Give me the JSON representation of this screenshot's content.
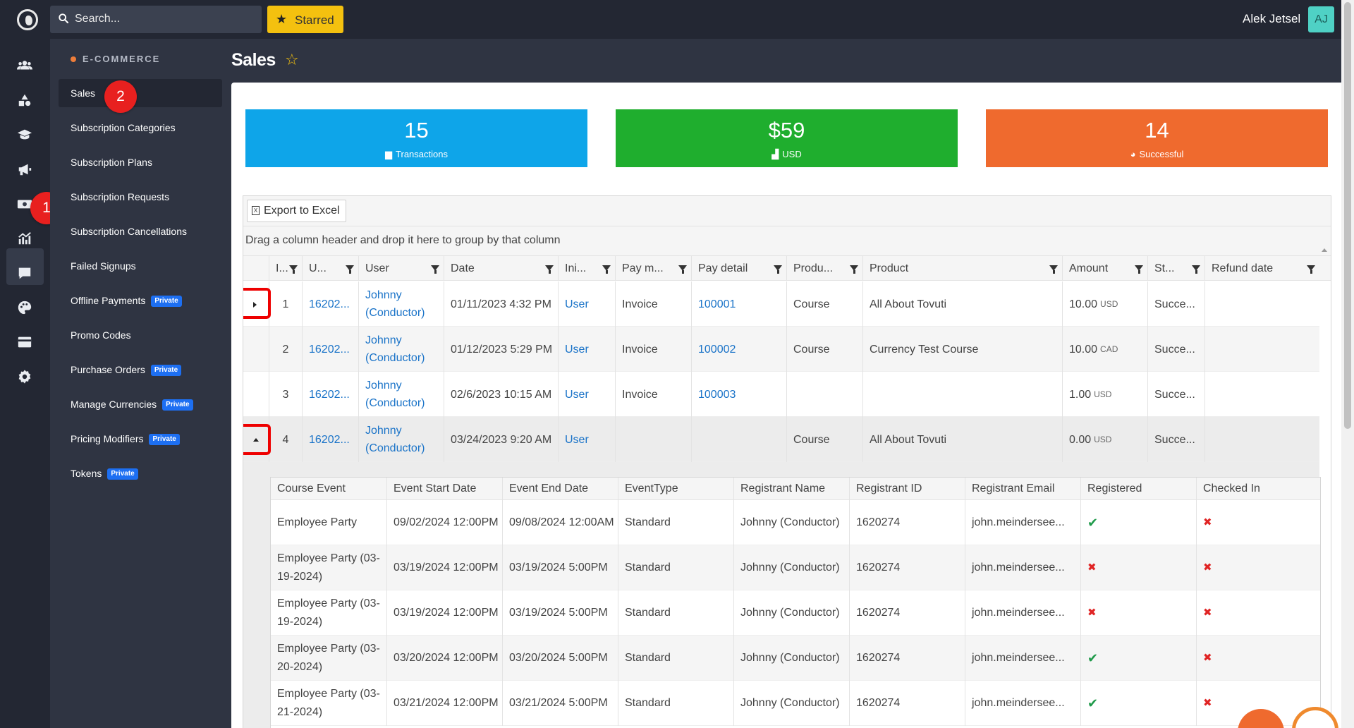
{
  "topbar": {
    "search_placeholder": "Search...",
    "starred_label": "Starred",
    "user_name": "Alek Jetsel",
    "avatar_initials": "AJ"
  },
  "rail": {
    "icons": [
      "users-icon",
      "shapes-icon",
      "graduation-cap-icon",
      "megaphone-icon",
      "money-icon",
      "chart-icon",
      "comment-icon",
      "palette-icon",
      "card-icon",
      "gear-icon"
    ],
    "annotation": "1"
  },
  "subnav": {
    "section_title": "E-COMMERCE",
    "annotation": "2",
    "items": [
      {
        "label": "Sales",
        "private": ""
      },
      {
        "label": "Subscription Categories",
        "private": ""
      },
      {
        "label": "Subscription Plans",
        "private": ""
      },
      {
        "label": "Subscription Requests",
        "private": ""
      },
      {
        "label": "Subscription Cancellations",
        "private": ""
      },
      {
        "label": "Failed Signups",
        "private": ""
      },
      {
        "label": "Offline Payments",
        "private": "Private"
      },
      {
        "label": "Promo Codes",
        "private": ""
      },
      {
        "label": "Purchase Orders",
        "private": "Private"
      },
      {
        "label": "Manage Currencies",
        "private": "Private"
      },
      {
        "label": "Pricing Modifiers",
        "private": "Private"
      },
      {
        "label": "Tokens",
        "private": "Private"
      }
    ]
  },
  "page": {
    "title": "Sales"
  },
  "stats": [
    {
      "value": "15",
      "label": "Transactions",
      "color": "#0ea5e9"
    },
    {
      "value": "$59",
      "label": "USD",
      "color": "#1fae2e"
    },
    {
      "value": "14",
      "label": "Successful",
      "color": "#ef6a2e"
    }
  ],
  "grid": {
    "export_label": "Export to Excel",
    "group_hint": "Drag a column header and drop it here to group by that column",
    "columns": [
      "I...",
      "U...",
      "User",
      "Date",
      "Ini...",
      "Pay m...",
      "Pay detail",
      "Produ...",
      "Product",
      "Amount",
      "St...",
      "Refund date"
    ],
    "rows": [
      {
        "index": "1",
        "uid": "16202...",
        "user": "Johnny (Conductor)",
        "date": "01/11/2023 4:32 PM",
        "initiator": "User",
        "pay_method": "Invoice",
        "pay_detail": "100001",
        "product_type": "Course",
        "product": "All About Tovuti",
        "amount": "10.00",
        "currency": "USD",
        "status": "Succe...",
        "refund_date": ""
      },
      {
        "index": "2",
        "uid": "16202...",
        "user": "Johnny (Conductor)",
        "date": "01/12/2023 5:29 PM",
        "initiator": "User",
        "pay_method": "Invoice",
        "pay_detail": "100002",
        "product_type": "Course",
        "product": "Currency Test Course",
        "amount": "10.00",
        "currency": "CAD",
        "status": "Succe...",
        "refund_date": ""
      },
      {
        "index": "3",
        "uid": "16202...",
        "user": "Johnny (Conductor)",
        "date": "02/6/2023 10:15 AM",
        "initiator": "User",
        "pay_method": "Invoice",
        "pay_detail": "100003",
        "product_type": "",
        "product": "",
        "amount": "1.00",
        "currency": "USD",
        "status": "Succe...",
        "refund_date": ""
      },
      {
        "index": "4",
        "uid": "16202...",
        "user": "Johnny (Conductor)",
        "date": "03/24/2023 9:20 AM",
        "initiator": "User",
        "pay_method": "",
        "pay_detail": "",
        "product_type": "Course",
        "product": "All About Tovuti",
        "amount": "0.00",
        "currency": "USD",
        "status": "Succe...",
        "refund_date": ""
      }
    ]
  },
  "detail": {
    "columns": [
      "Course Event",
      "Event Start Date",
      "Event End Date",
      "EventType",
      "Registrant Name",
      "Registrant ID",
      "Registrant Email",
      "Registered",
      "Checked In"
    ],
    "rows": [
      {
        "event": "Employee Party",
        "start": "09/02/2024 12:00PM",
        "end": "09/08/2024 12:00AM",
        "type": "Standard",
        "name": "Johnny (Conductor)",
        "id": "1620274",
        "email": "john.meindersee...",
        "registered": true,
        "checked_in": false
      },
      {
        "event": "Employee Party (03-19-2024)",
        "start": "03/19/2024 12:00PM",
        "end": "03/19/2024 5:00PM",
        "type": "Standard",
        "name": "Johnny (Conductor)",
        "id": "1620274",
        "email": "john.meindersee...",
        "registered": false,
        "checked_in": false
      },
      {
        "event": "Employee Party (03-19-2024)",
        "start": "03/19/2024 12:00PM",
        "end": "03/19/2024 5:00PM",
        "type": "Standard",
        "name": "Johnny (Conductor)",
        "id": "1620274",
        "email": "john.meindersee...",
        "registered": false,
        "checked_in": false
      },
      {
        "event": "Employee Party (03-20-2024)",
        "start": "03/20/2024 12:00PM",
        "end": "03/20/2024 5:00PM",
        "type": "Standard",
        "name": "Johnny (Conductor)",
        "id": "1620274",
        "email": "john.meindersee...",
        "registered": true,
        "checked_in": false
      },
      {
        "event": "Employee Party (03-21-2024)",
        "start": "03/21/2024 12:00PM",
        "end": "03/21/2024 5:00PM",
        "type": "Standard",
        "name": "Johnny (Conductor)",
        "id": "1620274",
        "email": "john.meindersee...",
        "registered": true,
        "checked_in": false
      }
    ]
  },
  "colors": {
    "accent_yellow": "#f4c10f",
    "link_blue": "#1a73c8",
    "annotation_red": "#e8201f",
    "fab_orange": "#ef8a2e"
  }
}
